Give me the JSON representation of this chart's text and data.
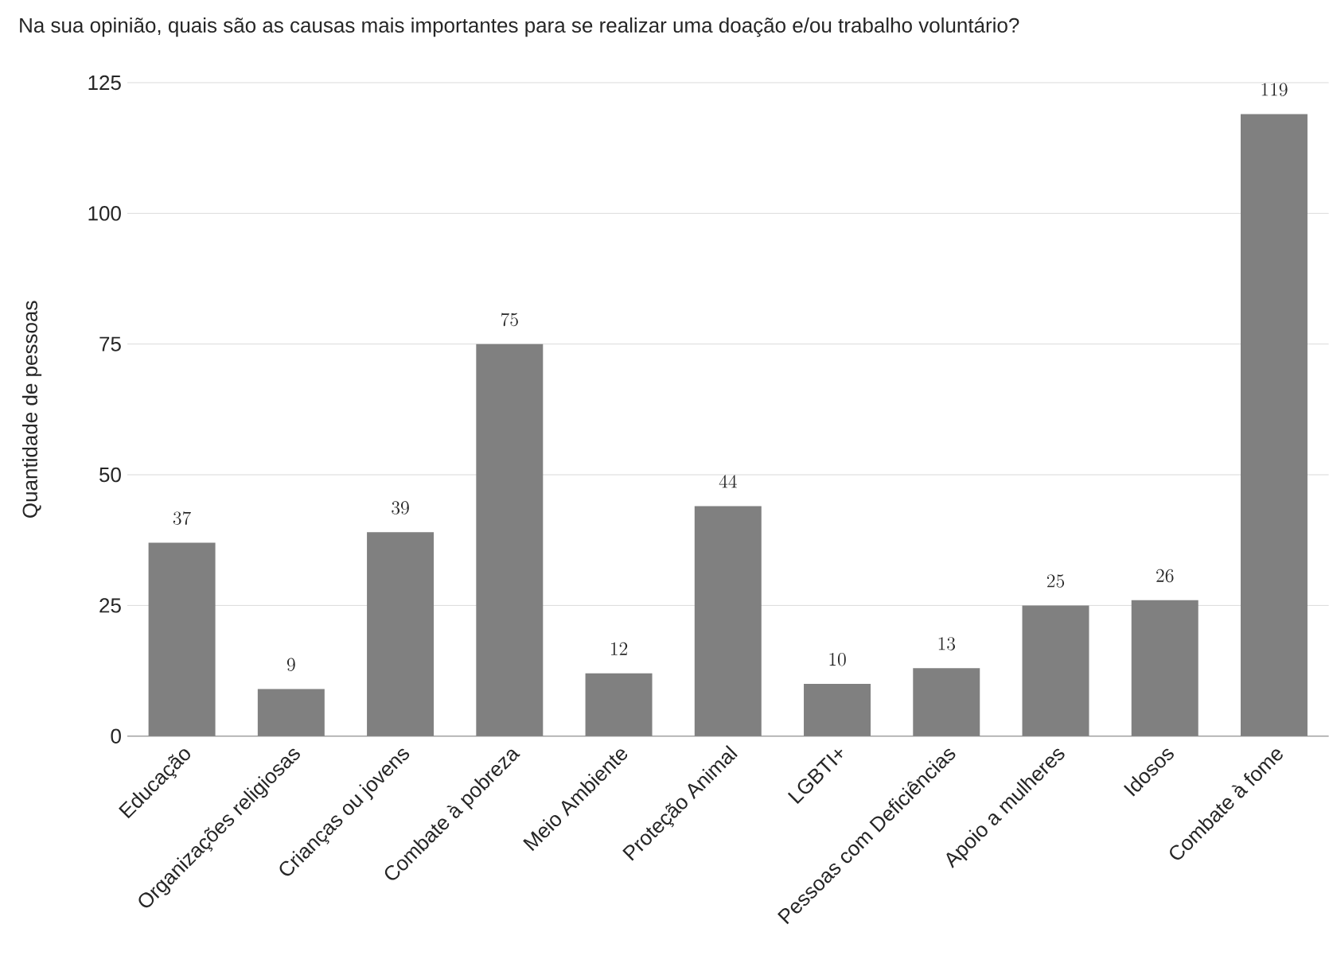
{
  "chart_data": {
    "type": "bar",
    "title": "Na sua opinião, quais são as causas mais importantes para se realizar uma doação e/ou trabalho voluntário?",
    "ylabel": "Quantidade de pessoas",
    "categories": [
      "Educação",
      "Organizações religiosas",
      "Crianças ou jovens",
      "Combate à pobreza",
      "Meio Ambiente",
      "Proteção Animal",
      "LGBTI+",
      "Pessoas com Deficiências",
      "Apoio a mulheres",
      "Idosos",
      "Combate à fome"
    ],
    "values": [
      37,
      9,
      39,
      75,
      12,
      44,
      10,
      13,
      25,
      26,
      119
    ],
    "color": "#808080",
    "ylim": [
      0,
      125
    ],
    "yticks": [
      0,
      25,
      50,
      75,
      100,
      125
    ],
    "grid": "y",
    "data_labels": true
  }
}
